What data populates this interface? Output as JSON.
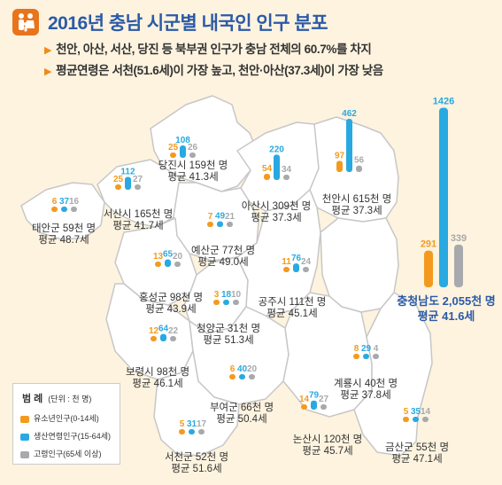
{
  "title": "2016년 충남 시군별 내국인 인구 분포",
  "bullets": [
    "천안, 아산, 서산, 당진 등 북부권 인구가 충남 전체의 60.7%를 차지",
    "평균연령은 서천(51.6세)이 가장 높고, 천안·아산(37.3세)이 가장 낮음"
  ],
  "colors": {
    "youth": "#f39a1e",
    "working": "#29a9e1",
    "elderly": "#a7a9ac",
    "title": "#2b5aa8",
    "map_fill": "#ffffff",
    "map_border": "#c7c7c7",
    "background": "#fdf3df",
    "total_text": "#2b5aa8"
  },
  "legend": {
    "title": "범   례",
    "unit": "(단위 : 천 명)",
    "items": [
      {
        "key": "youth",
        "label": "유소년인구(0-14세)"
      },
      {
        "key": "working",
        "label": "생산연령인구(15-64세)"
      },
      {
        "key": "elderly",
        "label": "고령인구(65세 이상)"
      }
    ]
  },
  "chart_data": {
    "type": "bar",
    "unit": "천 명",
    "series_keys": [
      "youth",
      "working",
      "elderly"
    ],
    "regions": [
      {
        "name": "당진시",
        "label": "당진시 159천 명",
        "avg": "평균 41.3세",
        "values": [
          25,
          108,
          26
        ]
      },
      {
        "name": "아산시",
        "label": "아산시 309천 명",
        "avg": "평균 37.3세",
        "values": [
          54,
          220,
          34
        ]
      },
      {
        "name": "천안시",
        "label": "천안시 615천 명",
        "avg": "평균 37.3세",
        "values": [
          97,
          462,
          56
        ]
      },
      {
        "name": "서산시",
        "label": "서산시 165천 명",
        "avg": "평균 41.7세",
        "values": [
          25,
          112,
          27
        ]
      },
      {
        "name": "태안군",
        "label": "태안군 59천 명",
        "avg": "평균 48.7세",
        "values": [
          6,
          37,
          16
        ]
      },
      {
        "name": "예산군",
        "label": "예산군 77천 명",
        "avg": "평균 49.0세",
        "values": [
          7,
          49,
          21
        ]
      },
      {
        "name": "홍성군",
        "label": "홍성군 98천 명",
        "avg": "평균 43.9세",
        "values": [
          13,
          65,
          20
        ]
      },
      {
        "name": "청양군",
        "label": "청양군 31천 명",
        "avg": "평균 51.3세",
        "values": [
          3,
          18,
          10
        ]
      },
      {
        "name": "공주시",
        "label": "공주시 111천 명",
        "avg": "평균 45.1세",
        "values": [
          11,
          76,
          24
        ]
      },
      {
        "name": "보령시",
        "label": "보령시 98천 명",
        "avg": "평균 46.1세",
        "values": [
          12,
          64,
          22
        ]
      },
      {
        "name": "계룡시",
        "label": "계룡시 40천 명",
        "avg": "평균 37.8세",
        "values": [
          8,
          29,
          4
        ]
      },
      {
        "name": "부여군",
        "label": "부여군 66천 명",
        "avg": "평균 50.4세",
        "values": [
          6,
          40,
          20
        ]
      },
      {
        "name": "논산시",
        "label": "논산시 120천 명",
        "avg": "평균 45.7세",
        "values": [
          14,
          79,
          27
        ]
      },
      {
        "name": "서천군",
        "label": "서천군 52천 명",
        "avg": "평균 51.6세",
        "values": [
          5,
          31,
          17
        ]
      },
      {
        "name": "금산군",
        "label": "금산군 55천 명",
        "avg": "평균 47.1세",
        "values": [
          5,
          35,
          14
        ]
      }
    ],
    "total": {
      "name": "충청남도",
      "label": "충청남도 2,055천 명",
      "avg": "평균 41.6세",
      "values": [
        291,
        1426,
        339
      ]
    }
  }
}
